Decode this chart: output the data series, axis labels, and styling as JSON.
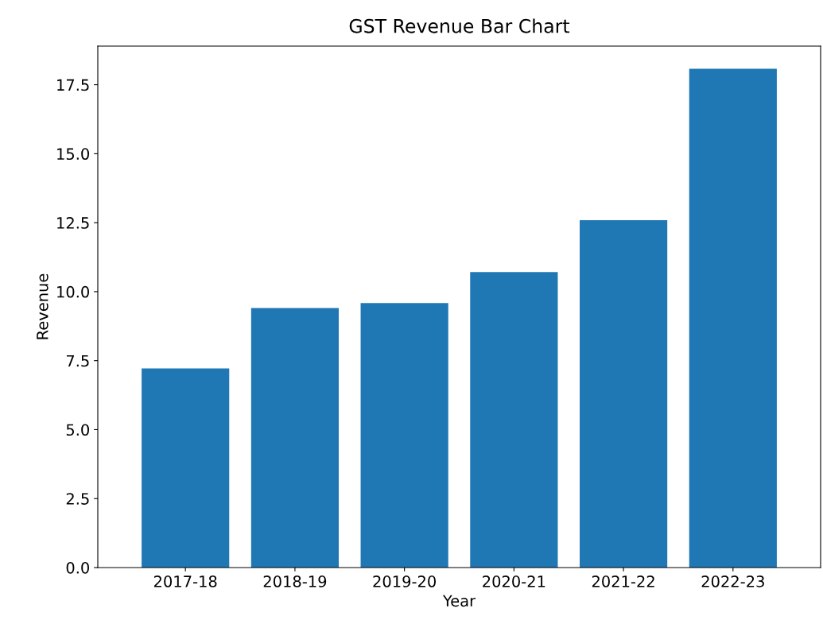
{
  "chart_data": {
    "type": "bar",
    "title": "GST Revenue Bar Chart",
    "xlabel": "Year",
    "ylabel": "Revenue",
    "categories": [
      "2017-18",
      "2018-19",
      "2019-20",
      "2020-21",
      "2021-22",
      "2022-23"
    ],
    "values": [
      7.22,
      9.41,
      9.59,
      10.71,
      12.59,
      18.08
    ],
    "color": "#1f77b4",
    "ylim": [
      0,
      18.9
    ],
    "yticks": [
      {
        "value": 0,
        "label": "0.0"
      },
      {
        "value": 2.5,
        "label": "2.5"
      },
      {
        "value": 5,
        "label": "5.0"
      },
      {
        "value": 7.5,
        "label": "7.5"
      },
      {
        "value": 10,
        "label": "10.0"
      },
      {
        "value": 12.5,
        "label": "12.5"
      },
      {
        "value": 15,
        "label": "15.0"
      },
      {
        "value": 17.5,
        "label": "17.5"
      }
    ],
    "grid": false
  }
}
